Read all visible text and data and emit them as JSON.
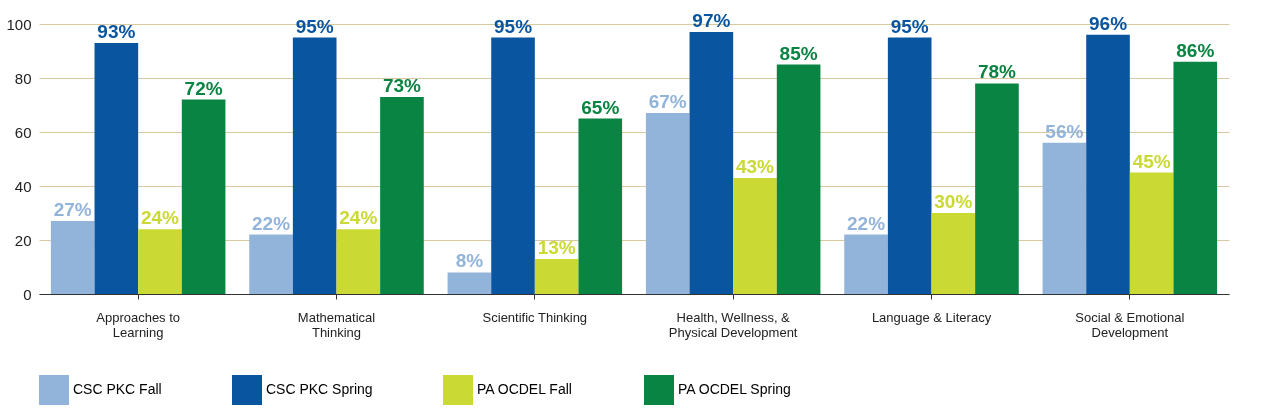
{
  "chart_data": {
    "type": "bar",
    "categories": [
      "Approaches to\nLearning",
      "Mathematical\nThinking",
      "Scientific Thinking",
      "Health, Wellness, &\nPhysical Development",
      "Language & Literacy",
      "Social & Emotional\nDevelopment"
    ],
    "series": [
      {
        "name": "CSC PKC Fall",
        "color": "#93b4da",
        "values": [
          27,
          22,
          8,
          67,
          22,
          56
        ],
        "value_labels": [
          "27%",
          "22%",
          "8%",
          "67%",
          "22%",
          "56%"
        ]
      },
      {
        "name": "CSC PKC Spring",
        "color": "#0a559f",
        "values": [
          93,
          95,
          95,
          97,
          95,
          96
        ],
        "value_labels": [
          "93%",
          "95%",
          "95%",
          "97%",
          "95%",
          "96%"
        ]
      },
      {
        "name": "PA OCDEL Fall",
        "color": "#cbd934",
        "values": [
          24,
          24,
          13,
          43,
          30,
          45
        ],
        "value_labels": [
          "24%",
          "24%",
          "13%",
          "43%",
          "30%",
          "45%"
        ]
      },
      {
        "name": "PA OCDEL Spring",
        "color": "#0a8442",
        "values": [
          72,
          73,
          65,
          85,
          78,
          86
        ],
        "value_labels": [
          "72%",
          "73%",
          "65%",
          "85%",
          "78%",
          "86%"
        ]
      }
    ],
    "ylim": [
      0,
      100
    ],
    "yticks": [
      0,
      20,
      40,
      60,
      80,
      100
    ],
    "grid": "y",
    "legend": "bottom"
  }
}
